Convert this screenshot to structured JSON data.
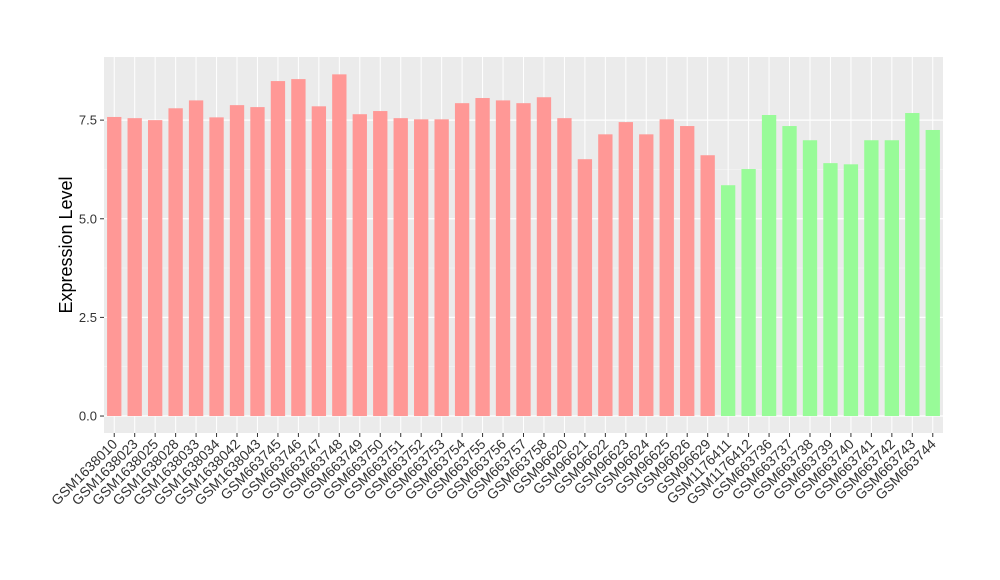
{
  "chart_data": {
    "type": "bar",
    "y_label": "Expression Level",
    "categories": [
      "GSM1638010",
      "GSM1638023",
      "GSM1638025",
      "GSM1638028",
      "GSM1638033",
      "GSM1638034",
      "GSM1638042",
      "GSM1638043",
      "GSM663745",
      "GSM663746",
      "GSM663747",
      "GSM663748",
      "GSM663749",
      "GSM663750",
      "GSM663751",
      "GSM663752",
      "GSM663753",
      "GSM663754",
      "GSM663755",
      "GSM663756",
      "GSM663757",
      "GSM663758",
      "GSM96620",
      "GSM96621",
      "GSM96622",
      "GSM96623",
      "GSM96624",
      "GSM96625",
      "GSM96626",
      "GSM96629",
      "GSM1176411",
      "GSM1176412",
      "GSM663736",
      "GSM663737",
      "GSM663738",
      "GSM663739",
      "GSM663740",
      "GSM663741",
      "GSM663742",
      "GSM663743",
      "GSM663744"
    ],
    "values": [
      7.58,
      7.55,
      7.5,
      7.8,
      8.0,
      7.57,
      7.88,
      7.83,
      8.49,
      8.54,
      7.85,
      8.66,
      7.65,
      7.73,
      7.55,
      7.52,
      7.52,
      7.93,
      8.06,
      8.0,
      7.93,
      8.08,
      7.55,
      6.51,
      7.14,
      7.45,
      7.14,
      7.52,
      7.35,
      6.61,
      5.85,
      6.26,
      7.63,
      7.35,
      6.99,
      6.41,
      6.38,
      6.99,
      6.99,
      7.68,
      7.25
    ],
    "colors": [
      "#ff9896",
      "#ff9896",
      "#ff9896",
      "#ff9896",
      "#ff9896",
      "#ff9896",
      "#ff9896",
      "#ff9896",
      "#ff9896",
      "#ff9896",
      "#ff9896",
      "#ff9896",
      "#ff9896",
      "#ff9896",
      "#ff9896",
      "#ff9896",
      "#ff9896",
      "#ff9896",
      "#ff9896",
      "#ff9896",
      "#ff9896",
      "#ff9896",
      "#ff9896",
      "#ff9896",
      "#ff9896",
      "#ff9896",
      "#ff9896",
      "#ff9896",
      "#ff9896",
      "#ff9896",
      "#98fb98",
      "#98fb98",
      "#98fb98",
      "#98fb98",
      "#98fb98",
      "#98fb98",
      "#98fb98",
      "#98fb98",
      "#98fb98",
      "#98fb98",
      "#98fb98"
    ],
    "ylim": [
      -0.43,
      9.1
    ],
    "yticks": [
      {
        "value": 0,
        "label": "0.0"
      },
      {
        "value": 2.5,
        "label": "2.5"
      },
      {
        "value": 5,
        "label": "5.0"
      },
      {
        "value": 7.5,
        "label": "7.5"
      }
    ],
    "grid": true
  }
}
